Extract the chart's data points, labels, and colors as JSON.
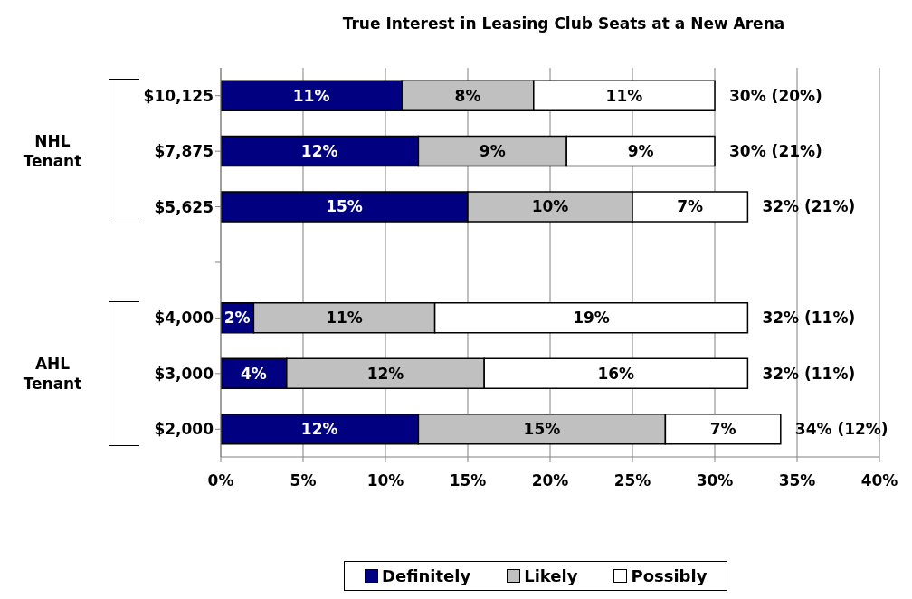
{
  "chart_data": {
    "type": "bar",
    "orientation": "horizontal",
    "stacked": true,
    "title": "True Interest in Leasing Club Seats at a New Arena",
    "categories": [
      "$10,125",
      "$7,875",
      "$5,625",
      null,
      "$4,000",
      "$3,000",
      "$2,000"
    ],
    "series": [
      {
        "name": "Definitely",
        "color": "#000080",
        "values": [
          11,
          12,
          15,
          null,
          2,
          4,
          12
        ],
        "value_labels": [
          "11%",
          "12%",
          "15%",
          null,
          "2%",
          "4%",
          "12%"
        ]
      },
      {
        "name": "Likely",
        "color": "#c0c0c0",
        "values": [
          8,
          9,
          10,
          null,
          11,
          12,
          15
        ],
        "value_labels": [
          "8%",
          "9%",
          "10%",
          null,
          "11%",
          "12%",
          "15%"
        ]
      },
      {
        "name": "Possibly",
        "color": "#ffffff",
        "values": [
          11,
          9,
          7,
          null,
          19,
          16,
          7
        ],
        "value_labels": [
          "11%",
          "9%",
          "7%",
          null,
          "19%",
          "16%",
          "7%"
        ]
      }
    ],
    "totals": [
      "30% (20%)",
      "30% (21%)",
      "32% (21%)",
      null,
      "32% (11%)",
      "32% (11%)",
      "34% (12%)"
    ],
    "annotations": [
      "NHL Tenant",
      "AHL Tenant"
    ],
    "xlim": [
      0,
      40
    ],
    "xticks": [
      {
        "value": 0,
        "label": "0%"
      },
      {
        "value": 5,
        "label": "5%"
      },
      {
        "value": 10,
        "label": "10%"
      },
      {
        "value": 15,
        "label": "15%"
      },
      {
        "value": 20,
        "label": "20%"
      },
      {
        "value": 25,
        "label": "25%"
      },
      {
        "value": 30,
        "label": "30%"
      },
      {
        "value": 35,
        "label": "35%"
      },
      {
        "value": 40,
        "label": "40%"
      }
    ],
    "grid": "x",
    "legend": "bottom"
  }
}
